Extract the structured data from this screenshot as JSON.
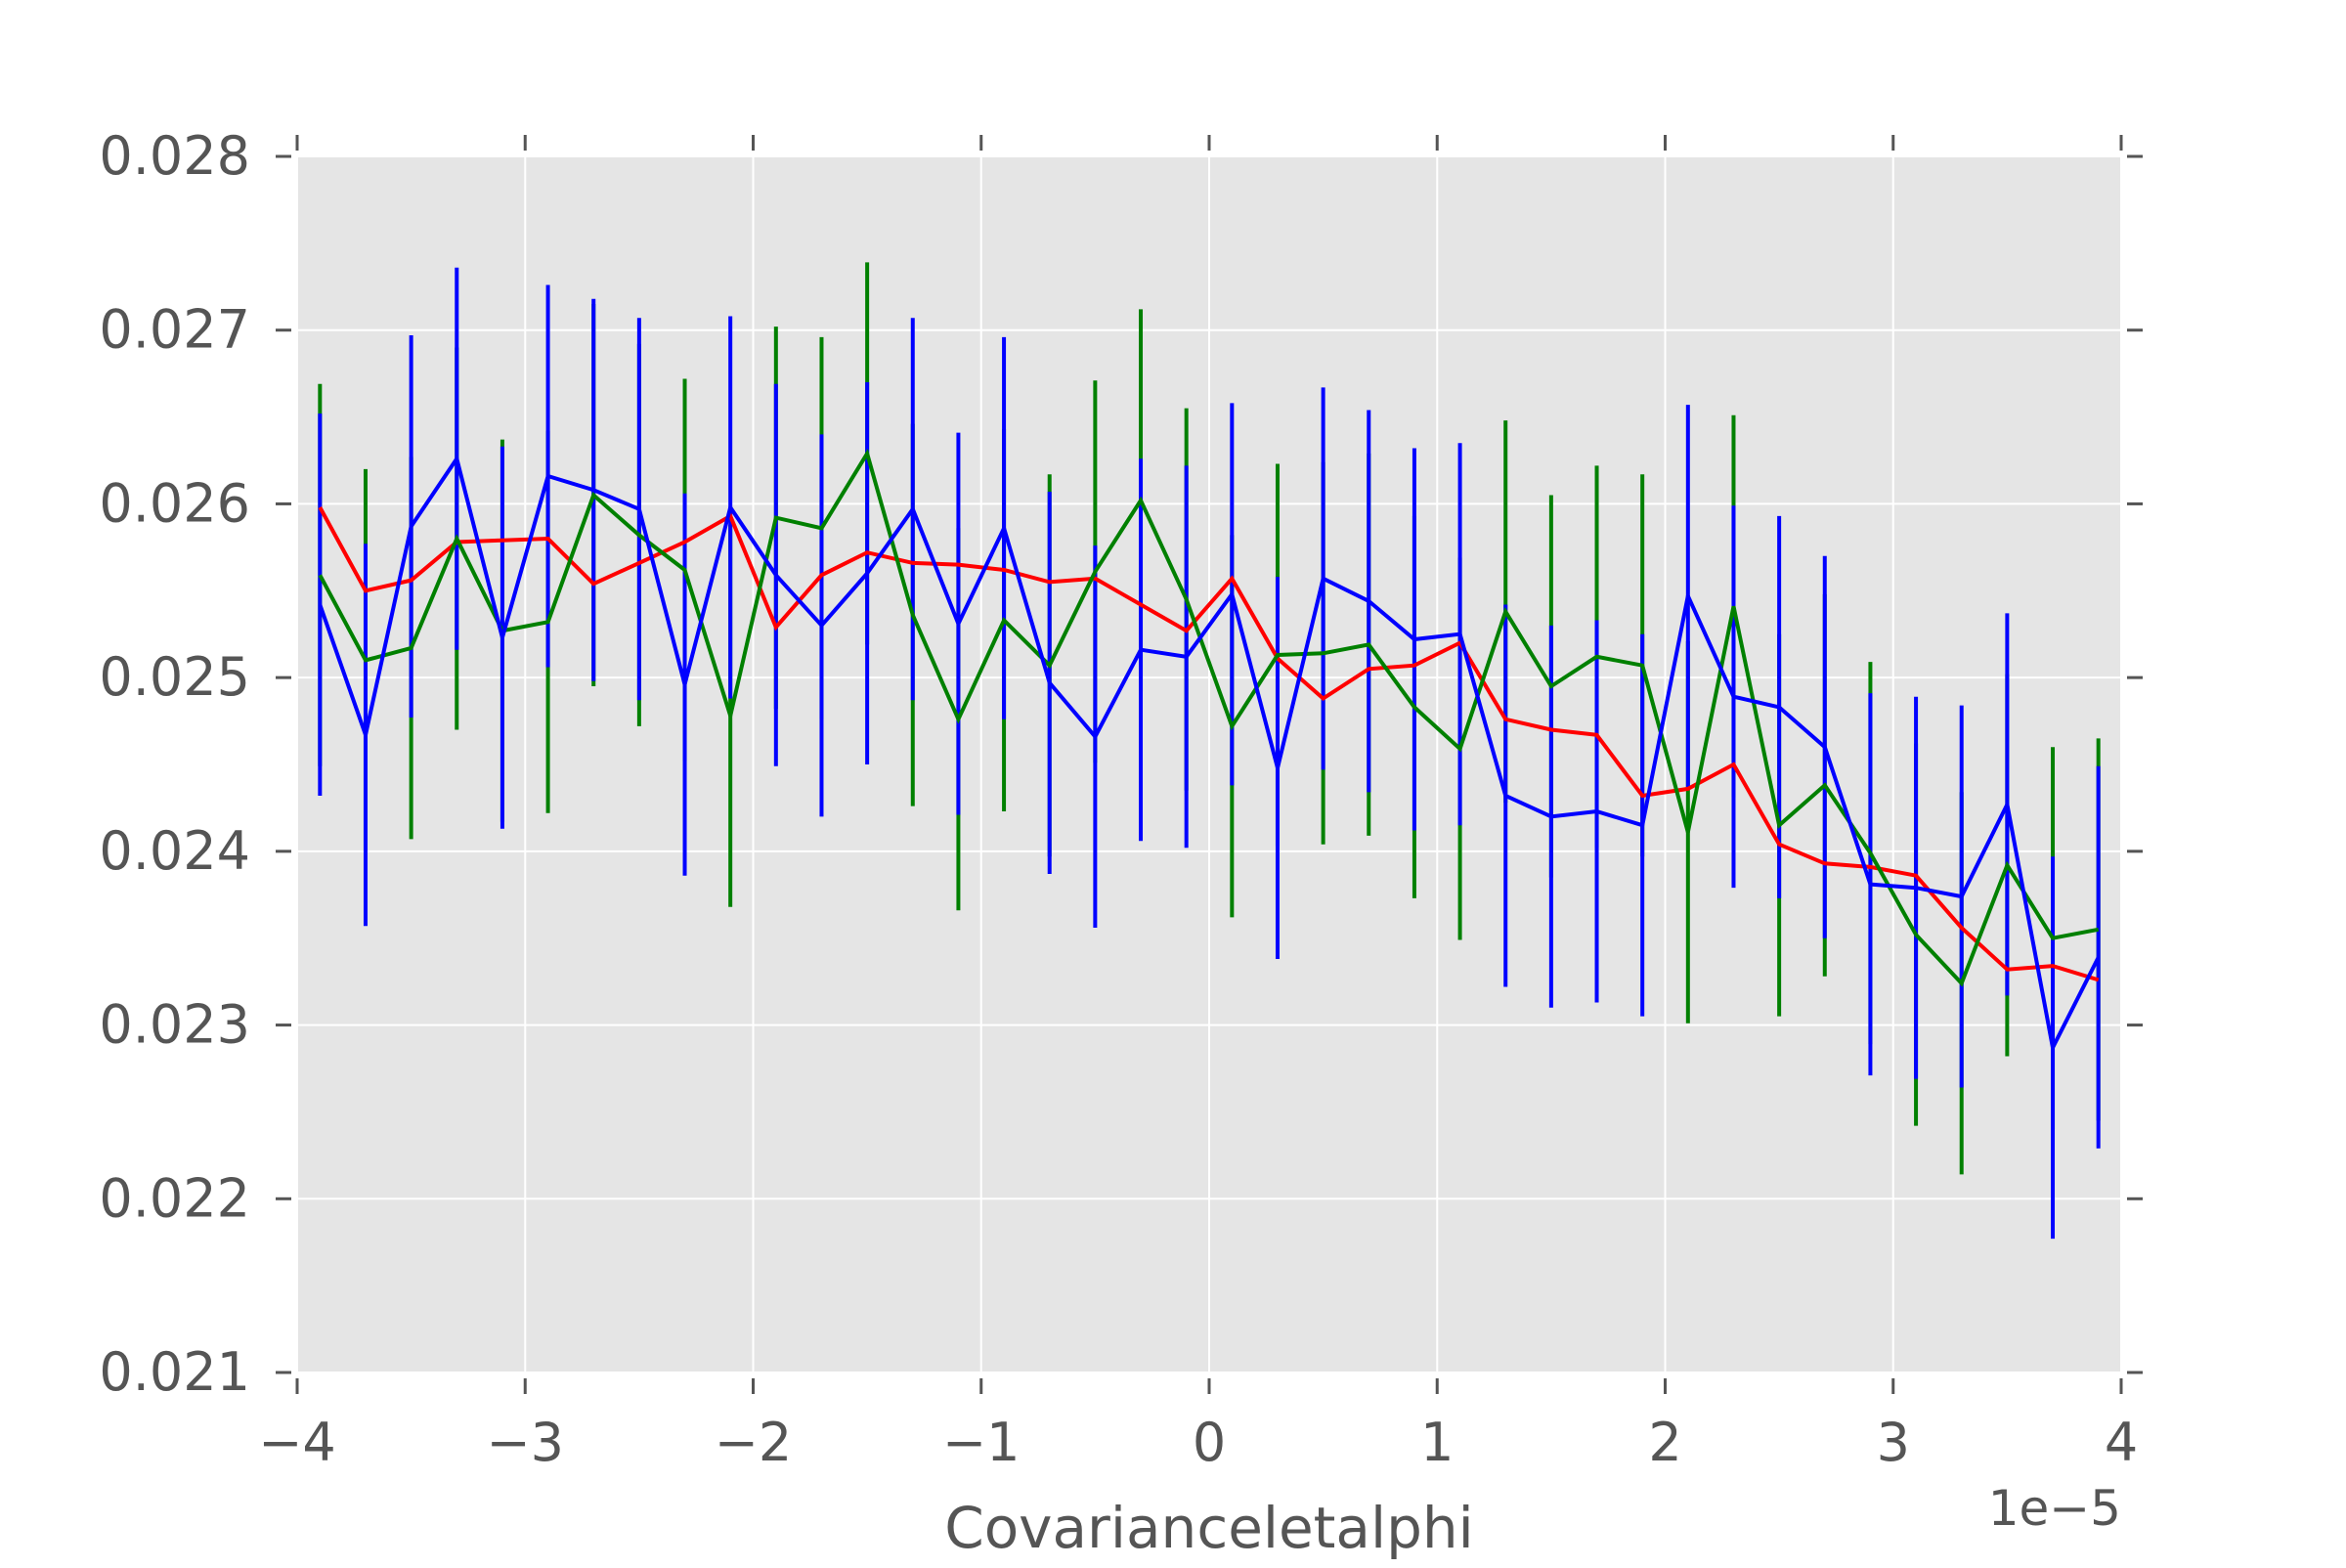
{
  "chart_data": {
    "type": "line",
    "title": "",
    "xlabel": "Covarianceletalphi",
    "ylabel": "",
    "x_offset_label": "1e−5",
    "xlim": [
      -4e-05,
      4e-05
    ],
    "ylim": [
      0.021,
      0.028
    ],
    "x_ticks": [
      -4e-05,
      -3e-05,
      -2e-05,
      -1e-05,
      0,
      1e-05,
      2e-05,
      3e-05,
      4e-05
    ],
    "x_tick_labels": [
      "−4",
      "−3",
      "−2",
      "−1",
      "0",
      "1",
      "2",
      "3",
      "4"
    ],
    "y_ticks": [
      0.021,
      0.022,
      0.023,
      0.024,
      0.025,
      0.026,
      0.027,
      0.028
    ],
    "y_tick_labels": [
      "0.021",
      "0.022",
      "0.023",
      "0.024",
      "0.025",
      "0.026",
      "0.027",
      "0.028"
    ],
    "grid": true,
    "background": "#e5e5e5",
    "x": [
      -3.9e-05,
      -3.7e-05,
      -3.5e-05,
      -3.3e-05,
      -3.1e-05,
      -2.9e-05,
      -2.7e-05,
      -2.5e-05,
      -2.3e-05,
      -2.1e-05,
      -1.9e-05,
      -1.7e-05,
      -1.5e-05,
      -1.3e-05,
      -1.1e-05,
      -9e-06,
      -7e-06,
      -5e-06,
      -3e-06,
      -1e-06,
      1e-06,
      3e-06,
      5e-06,
      7e-06,
      9e-06,
      1.1e-05,
      1.3e-05,
      1.5e-05,
      1.7e-05,
      1.9e-05,
      2.1e-05,
      2.3e-05,
      2.5e-05,
      2.7e-05,
      2.9e-05,
      3.1e-05,
      3.3e-05,
      3.5e-05,
      3.7e-05,
      3.9e-05
    ],
    "series": [
      {
        "color": "#ff0000",
        "values": [
          0.02598,
          0.0255,
          0.02556,
          0.02578,
          0.02579,
          0.0258,
          0.02554,
          0.02566,
          0.02578,
          0.02593,
          0.02529,
          0.02559,
          0.02572,
          0.02566,
          0.02565,
          0.02562,
          0.02555,
          0.02557,
          0.02542,
          0.02527,
          0.02557,
          0.02511,
          0.02488,
          0.02505,
          0.02507,
          0.0252,
          0.02476,
          0.0247,
          0.02467,
          0.02432,
          0.02436,
          0.0245,
          0.02404,
          0.02393,
          0.02391,
          0.02386,
          0.02356,
          0.02332,
          0.02334,
          0.02326
        ]
      },
      {
        "color": "#008000",
        "values": [
          0.02559,
          0.0251,
          0.02517,
          0.0258,
          0.02527,
          0.02532,
          0.02605,
          0.02582,
          0.02562,
          0.02478,
          0.02592,
          0.02586,
          0.02629,
          0.02536,
          0.02476,
          0.02533,
          0.02507,
          0.02561,
          0.02602,
          0.02545,
          0.02472,
          0.02513,
          0.02514,
          0.02519,
          0.02483,
          0.02459,
          0.02538,
          0.02495,
          0.02512,
          0.02507,
          0.02411,
          0.02541,
          0.02415,
          0.02438,
          0.02399,
          0.02352,
          0.02324,
          0.02392,
          0.0235,
          0.02355
        ],
        "error": [
          0.0011,
          0.0011,
          0.0011,
          0.0011,
          0.0011,
          0.0011,
          0.0011,
          0.0011,
          0.0011,
          0.0011,
          0.0011,
          0.0011,
          0.0011,
          0.0011,
          0.0011,
          0.0011,
          0.0011,
          0.0011,
          0.0011,
          0.0011,
          0.0011,
          0.0011,
          0.0011,
          0.0011,
          0.0011,
          0.0011,
          0.0011,
          0.0011,
          0.0011,
          0.0011,
          0.0011,
          0.0011,
          0.0011,
          0.0011,
          0.0011,
          0.0011,
          0.0011,
          0.0011,
          0.0011,
          0.0011
        ]
      },
      {
        "color": "#0000ff",
        "values": [
          0.02542,
          0.02467,
          0.02587,
          0.02626,
          0.02523,
          0.02616,
          0.02608,
          0.02597,
          0.02496,
          0.02598,
          0.02559,
          0.0253,
          0.0256,
          0.02597,
          0.02531,
          0.02586,
          0.02497,
          0.02466,
          0.02516,
          0.02512,
          0.02548,
          0.02448,
          0.02557,
          0.02544,
          0.02522,
          0.02525,
          0.02432,
          0.0242,
          0.02423,
          0.02415,
          0.02547,
          0.02489,
          0.02483,
          0.0246,
          0.02381,
          0.02379,
          0.02374,
          0.02427,
          0.02287,
          0.02339
        ],
        "error": [
          0.0011,
          0.0011,
          0.0011,
          0.0011,
          0.0011,
          0.0011,
          0.0011,
          0.0011,
          0.0011,
          0.0011,
          0.0011,
          0.0011,
          0.0011,
          0.0011,
          0.0011,
          0.0011,
          0.0011,
          0.0011,
          0.0011,
          0.0011,
          0.0011,
          0.0011,
          0.0011,
          0.0011,
          0.0011,
          0.0011,
          0.0011,
          0.0011,
          0.0011,
          0.0011,
          0.0011,
          0.0011,
          0.0011,
          0.0011,
          0.0011,
          0.0011,
          0.0011,
          0.0011,
          0.0011,
          0.0011
        ]
      }
    ]
  }
}
